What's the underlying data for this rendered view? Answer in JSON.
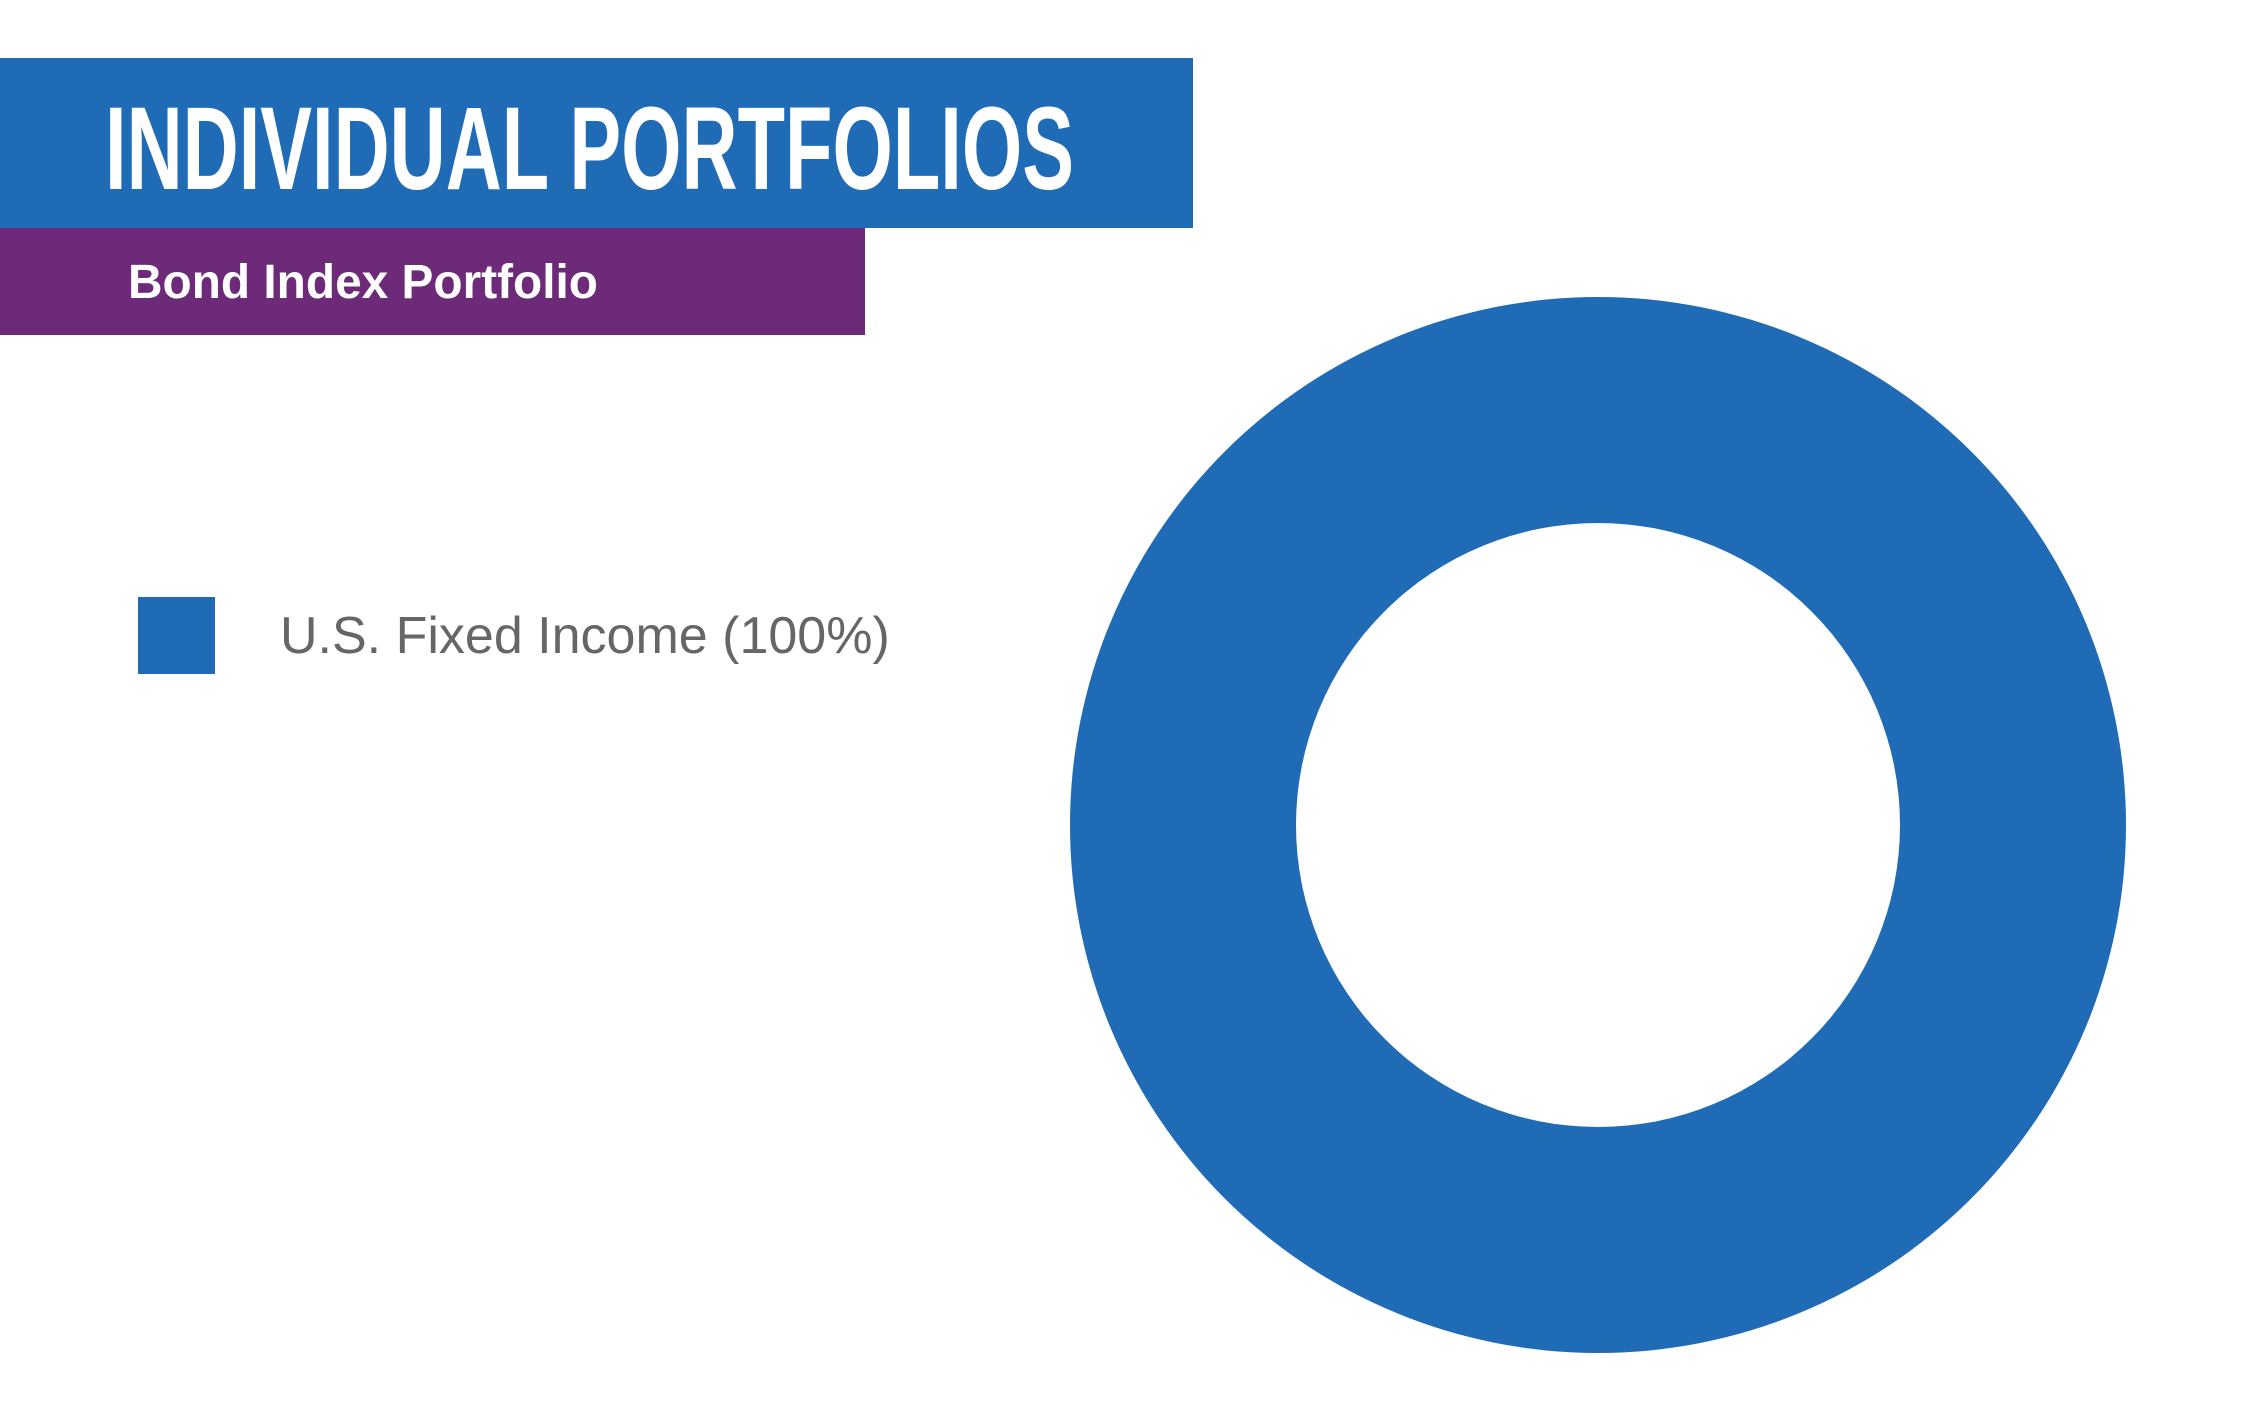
{
  "chart_data": {
    "type": "donut",
    "title": "INDIVIDUAL PORTFOLIOS",
    "subtitle": "Bond Index Portfolio",
    "categories": [
      "U.S. Fixed Income (100%)"
    ],
    "values": [
      100
    ],
    "colors": [
      "#206bb5"
    ]
  }
}
